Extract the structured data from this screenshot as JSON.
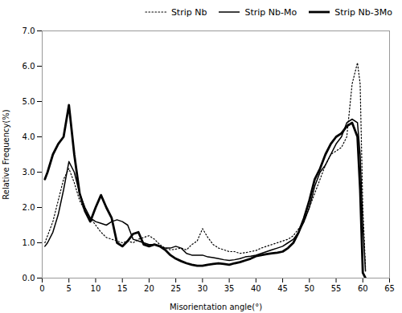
{
  "chart_data": {
    "type": "line",
    "xlabel": "Misorientation angle(°)",
    "ylabel": "Relative Frequency(%)",
    "x": [
      0.5,
      1,
      2,
      3,
      4,
      5,
      6,
      7,
      8,
      9,
      10,
      11,
      12,
      13,
      14,
      15,
      16,
      17,
      18,
      19,
      20,
      21,
      22,
      23,
      24,
      25,
      26,
      27,
      28,
      29,
      30,
      31,
      32,
      33,
      34,
      35,
      36,
      37,
      38,
      39,
      40,
      41,
      42,
      43,
      44,
      45,
      46,
      47,
      48,
      49,
      50,
      51,
      52,
      53,
      54,
      55,
      56,
      57,
      58,
      59,
      59.5,
      60,
      60.5
    ],
    "series": [
      {
        "name": "Strip Nb",
        "color": "black",
        "line_style": "dotted",
        "values": [
          1.0,
          1.2,
          1.6,
          2.2,
          2.8,
          3.1,
          2.7,
          2.2,
          1.9,
          1.7,
          1.5,
          1.3,
          1.15,
          1.1,
          1.05,
          1.0,
          1.05,
          1.0,
          1.1,
          1.15,
          1.2,
          1.1,
          0.95,
          0.85,
          0.8,
          0.82,
          0.85,
          0.8,
          0.95,
          1.05,
          1.4,
          1.15,
          0.95,
          0.85,
          0.8,
          0.75,
          0.75,
          0.7,
          0.72,
          0.75,
          0.78,
          0.85,
          0.9,
          0.95,
          1.0,
          1.05,
          1.1,
          1.2,
          1.4,
          1.6,
          2.0,
          2.4,
          2.8,
          3.2,
          3.5,
          3.6,
          3.7,
          4.0,
          5.5,
          6.1,
          5.5,
          2.0,
          0.3
        ]
      },
      {
        "name": "Strip Nb-Mo",
        "color": "black",
        "line_style": "solid",
        "values": [
          0.9,
          1.0,
          1.3,
          1.8,
          2.5,
          3.3,
          3.0,
          2.4,
          2.0,
          1.7,
          1.6,
          1.55,
          1.5,
          1.6,
          1.65,
          1.6,
          1.5,
          1.1,
          1.05,
          1.0,
          0.95,
          0.95,
          0.9,
          0.85,
          0.85,
          0.9,
          0.85,
          0.7,
          0.65,
          0.65,
          0.65,
          0.6,
          0.58,
          0.55,
          0.52,
          0.5,
          0.52,
          0.55,
          0.6,
          0.62,
          0.65,
          0.7,
          0.75,
          0.8,
          0.85,
          0.9,
          1.0,
          1.1,
          1.3,
          1.6,
          2.0,
          2.6,
          3.0,
          3.2,
          3.5,
          3.8,
          4.0,
          4.4,
          4.5,
          4.4,
          3.5,
          1.5,
          0.2
        ]
      },
      {
        "name": "Strip Nb-3Mo",
        "color": "black",
        "line_style": "thick",
        "values": [
          2.8,
          3.0,
          3.5,
          3.8,
          4.0,
          4.9,
          3.5,
          2.4,
          1.9,
          1.6,
          2.0,
          2.35,
          2.0,
          1.7,
          1.0,
          0.9,
          1.05,
          1.25,
          1.3,
          0.95,
          0.9,
          0.95,
          0.9,
          0.8,
          0.65,
          0.55,
          0.48,
          0.42,
          0.38,
          0.35,
          0.35,
          0.38,
          0.4,
          0.42,
          0.4,
          0.38,
          0.42,
          0.45,
          0.5,
          0.55,
          0.62,
          0.65,
          0.68,
          0.7,
          0.72,
          0.75,
          0.85,
          1.0,
          1.3,
          1.7,
          2.2,
          2.8,
          3.1,
          3.5,
          3.8,
          4.0,
          4.1,
          4.3,
          4.4,
          4.0,
          2.5,
          0.15,
          0.0
        ]
      }
    ],
    "xlim": [
      0,
      65
    ],
    "ylim": [
      0,
      7
    ],
    "xticks": [
      0,
      5,
      10,
      15,
      20,
      25,
      30,
      35,
      40,
      45,
      50,
      55,
      60,
      65
    ],
    "yticks": [
      0,
      1,
      2,
      3,
      4,
      5,
      6,
      7
    ],
    "legend": "upper right",
    "grid": false
  }
}
